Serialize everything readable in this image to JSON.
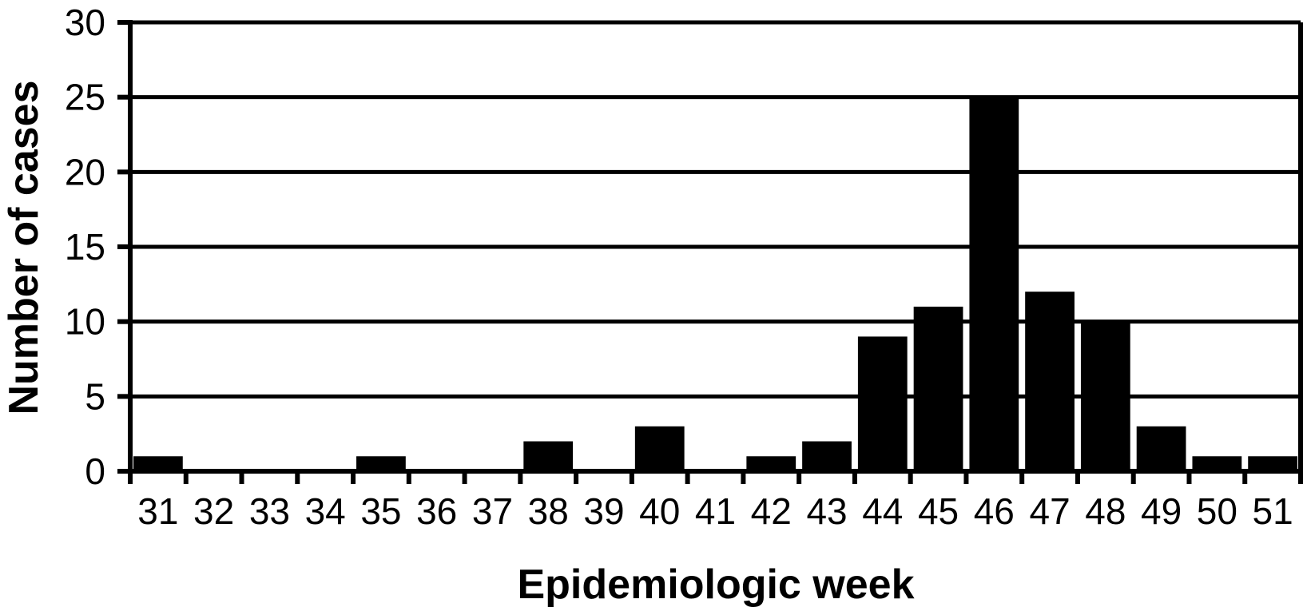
{
  "figure": {
    "background": "#ffffff",
    "bar_color": "#000000",
    "axis_color": "#000000",
    "text_color": "#000000"
  },
  "chart_data": {
    "type": "bar",
    "title": "",
    "xlabel": "Epidemiologic week",
    "ylabel": "Number of cases",
    "categories": [
      "31",
      "32",
      "33",
      "34",
      "35",
      "36",
      "37",
      "38",
      "39",
      "40",
      "41",
      "42",
      "43",
      "44",
      "45",
      "46",
      "47",
      "48",
      "49",
      "50",
      "51"
    ],
    "values": [
      1,
      0,
      0,
      0,
      1,
      0,
      0,
      2,
      0,
      3,
      0,
      1,
      2,
      9,
      11,
      25,
      12,
      10,
      3,
      1,
      1
    ],
    "ylim": [
      0,
      30
    ],
    "yticks": [
      0,
      5,
      10,
      15,
      20,
      25,
      30
    ],
    "ytick_labels": [
      "0",
      "5",
      "10",
      "15",
      "20",
      "25",
      "30"
    ],
    "grid": true,
    "legend": false
  }
}
